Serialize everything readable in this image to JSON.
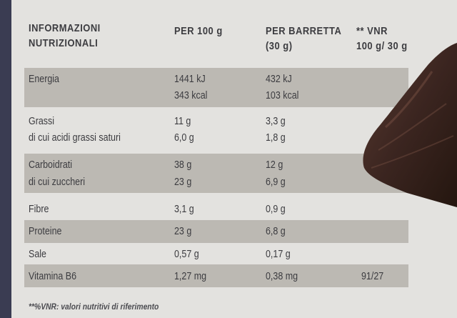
{
  "header": {
    "title_line1": "INFORMAZIONI",
    "title_line2": "NUTRIZIONALI",
    "col_per100": "PER 100 g",
    "col_bar_line1": "PER BARRETTA",
    "col_bar_line2": "(30 g)",
    "col_vnr_line1": "** VNR",
    "col_vnr_line2": "100 g/ 30 g"
  },
  "rows": {
    "energia": {
      "label": "Energia",
      "per100_kj": "1441 kJ",
      "per100_kcal": "343 kcal",
      "bar_kj": "432 kJ",
      "bar_kcal": "103 kcal"
    },
    "grassi": {
      "label": "Grassi",
      "sublabel": "di cui acidi grassi saturi",
      "per100": "11 g",
      "per100_sub": "6,0 g",
      "bar": "3,3 g",
      "bar_sub": "1,8 g"
    },
    "carboidrati": {
      "label": "Carboidrati",
      "sublabel": "di cui zuccheri",
      "per100": "38 g",
      "per100_sub": "23 g",
      "bar": "12 g",
      "bar_sub": "6,9 g"
    },
    "fibre": {
      "label": "Fibre",
      "per100": "3,1 g",
      "bar": "0,9 g"
    },
    "proteine": {
      "label": "Proteine",
      "per100": "23 g",
      "bar": "6,8 g"
    },
    "sale": {
      "label": "Sale",
      "per100": "0,57 g",
      "bar": "0,17 g"
    },
    "vitamina": {
      "label": "Vitamina B6",
      "per100": "1,27 mg",
      "bar": "0,38 mg",
      "vnr": "91/27"
    }
  },
  "footnote": "**%VNR: valori nutritivi di riferimento",
  "colors": {
    "background": "#e3e2df",
    "band": "#bcb9b3",
    "text": "#3c3c40",
    "edge": "#3a3c52"
  }
}
